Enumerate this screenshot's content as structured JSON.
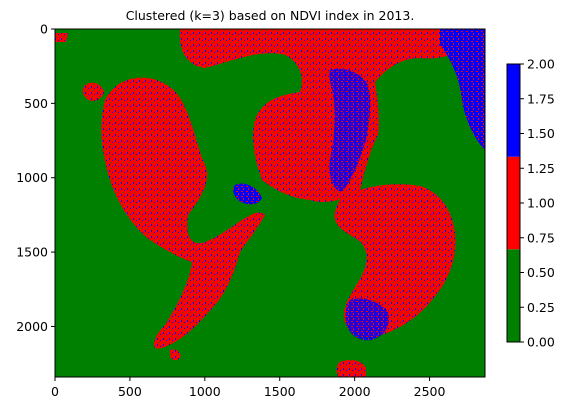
{
  "chart_data": {
    "type": "heatmap",
    "title": "Clustered (k=3) based on NDVI index in 2013.",
    "xlabel": "",
    "ylabel": "",
    "image_extent": {
      "x": [
        0,
        2870
      ],
      "y": [
        2340,
        0
      ]
    },
    "xticks": [
      0,
      500,
      1000,
      1500,
      2000,
      2500
    ],
    "yticks": [
      0,
      500,
      1000,
      1500,
      2000
    ],
    "grid": false,
    "clusters": [
      {
        "label": "0",
        "color": "#008000",
        "range": [
          0.0,
          0.667
        ]
      },
      {
        "label": "1",
        "color": "#ff0000",
        "range": [
          0.667,
          1.333
        ]
      },
      {
        "label": "2",
        "color": "#0000ff",
        "range": [
          1.333,
          2.0
        ]
      }
    ],
    "colorbar": {
      "range": [
        0.0,
        2.0
      ],
      "ticks": [
        "0.00",
        "0.25",
        "0.50",
        "0.75",
        "1.00",
        "1.25",
        "1.50",
        "1.75",
        "2.00"
      ]
    }
  }
}
